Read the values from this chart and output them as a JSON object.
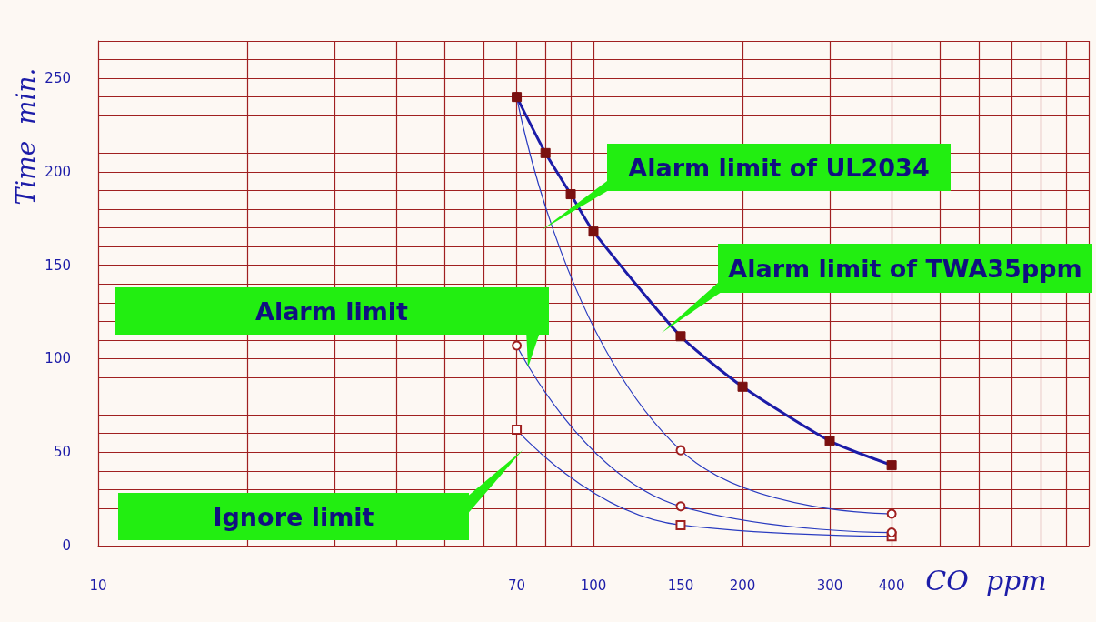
{
  "chart_data": {
    "type": "line",
    "xlabel": "CO  ppm",
    "ylabel": "Time  min.",
    "log": "x",
    "xlim": [
      10,
      1000
    ],
    "xticks": [
      10,
      70,
      100,
      150,
      200,
      300,
      400
    ],
    "ylim": [
      0,
      270
    ],
    "yticks": [
      0,
      50,
      100,
      150,
      200,
      250
    ],
    "grid": true,
    "series": [
      {
        "color": "#1c1ca8",
        "x": [
          70,
          80,
          90,
          100,
          150,
          200,
          300,
          400
        ],
        "values": [
          240,
          210,
          188,
          168,
          112,
          85,
          56,
          43
        ],
        "marker": "square"
      },
      {
        "color": "#2a3cc0",
        "x": [
          70,
          150,
          400
        ],
        "values": [
          240,
          51,
          17
        ],
        "marker": "circle"
      },
      {
        "color": "#2a3cc0",
        "x": [
          70,
          150,
          400
        ],
        "values": [
          107,
          21,
          7
        ],
        "marker": "circle"
      },
      {
        "color": "#2a3cc0",
        "x": [
          70,
          150,
          400
        ],
        "values": [
          62,
          11,
          5
        ],
        "marker": "square"
      }
    ],
    "annotations": [
      "Alarm limit of UL2034",
      "Alarm limit of TWA35ppm",
      "Alarm limit",
      "Ignore limit"
    ]
  }
}
